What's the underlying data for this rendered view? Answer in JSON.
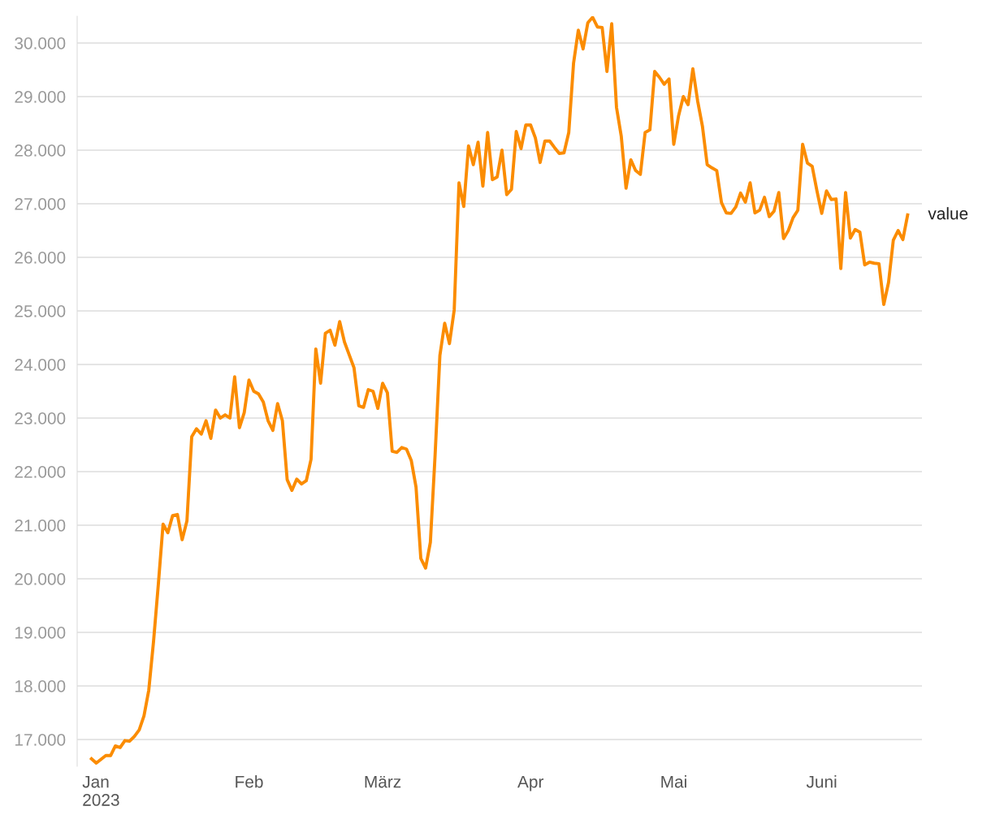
{
  "chart_data": {
    "type": "line",
    "x": [
      "2022-12-30",
      "2022-12-31",
      "2023-01-02",
      "2023-01-03",
      "2023-01-04",
      "2023-01-05",
      "2023-01-06",
      "2023-01-07",
      "2023-01-08",
      "2023-01-09",
      "2023-01-10",
      "2023-01-11",
      "2023-01-12",
      "2023-01-13",
      "2023-01-14",
      "2023-01-15",
      "2023-01-16",
      "2023-01-17",
      "2023-01-18",
      "2023-01-19",
      "2023-01-20",
      "2023-01-21",
      "2023-01-22",
      "2023-01-23",
      "2023-01-24",
      "2023-01-25",
      "2023-01-26",
      "2023-01-27",
      "2023-01-28",
      "2023-01-29",
      "2023-01-30",
      "2023-01-31",
      "2023-02-01",
      "2023-02-02",
      "2023-02-03",
      "2023-02-04",
      "2023-02-05",
      "2023-02-06",
      "2023-02-07",
      "2023-02-08",
      "2023-02-09",
      "2023-02-10",
      "2023-02-11",
      "2023-02-12",
      "2023-02-13",
      "2023-02-14",
      "2023-02-15",
      "2023-02-16",
      "2023-02-17",
      "2023-02-18",
      "2023-02-19",
      "2023-02-20",
      "2023-02-21",
      "2023-02-22",
      "2023-02-23",
      "2023-02-24",
      "2023-02-25",
      "2023-02-26",
      "2023-02-27",
      "2023-02-28",
      "2023-03-01",
      "2023-03-02",
      "2023-03-03",
      "2023-03-04",
      "2023-03-05",
      "2023-03-06",
      "2023-03-07",
      "2023-03-08",
      "2023-03-09",
      "2023-03-10",
      "2023-03-11",
      "2023-03-12",
      "2023-03-13",
      "2023-03-14",
      "2023-03-15",
      "2023-03-16",
      "2023-03-17",
      "2023-03-18",
      "2023-03-19",
      "2023-03-20",
      "2023-03-21",
      "2023-03-22",
      "2023-03-23",
      "2023-03-24",
      "2023-03-25",
      "2023-03-26",
      "2023-03-27",
      "2023-03-28",
      "2023-03-29",
      "2023-03-30",
      "2023-03-31",
      "2023-04-01",
      "2023-04-02",
      "2023-04-03",
      "2023-04-04",
      "2023-04-05",
      "2023-04-06",
      "2023-04-07",
      "2023-04-08",
      "2023-04-09",
      "2023-04-10",
      "2023-04-11",
      "2023-04-12",
      "2023-04-13",
      "2023-04-14",
      "2023-04-15",
      "2023-04-16",
      "2023-04-17",
      "2023-04-18",
      "2023-04-19",
      "2023-04-20",
      "2023-04-21",
      "2023-04-22",
      "2023-04-23",
      "2023-04-24",
      "2023-04-25",
      "2023-04-26",
      "2023-04-27",
      "2023-04-28",
      "2023-04-29",
      "2023-04-30",
      "2023-05-01",
      "2023-05-02",
      "2023-05-03",
      "2023-05-04",
      "2023-05-05",
      "2023-05-06",
      "2023-05-07",
      "2023-05-08",
      "2023-05-09",
      "2023-05-10",
      "2023-05-11",
      "2023-05-12",
      "2023-05-13",
      "2023-05-14",
      "2023-05-15",
      "2023-05-16",
      "2023-05-17",
      "2023-05-18",
      "2023-05-19",
      "2023-05-20",
      "2023-05-21",
      "2023-05-22",
      "2023-05-23",
      "2023-05-24",
      "2023-05-25",
      "2023-05-26",
      "2023-05-27",
      "2023-05-28",
      "2023-05-29",
      "2023-05-30",
      "2023-05-31",
      "2023-06-01",
      "2023-06-02",
      "2023-06-03",
      "2023-06-04",
      "2023-06-05",
      "2023-06-06",
      "2023-06-07",
      "2023-06-08",
      "2023-06-09",
      "2023-06-10",
      "2023-06-11",
      "2023-06-12",
      "2023-06-13",
      "2023-06-14",
      "2023-06-15",
      "2023-06-16",
      "2023-06-17",
      "2023-06-18",
      "2023-06-19"
    ],
    "series": [
      {
        "name": "value",
        "color": "#fb8c00",
        "values": [
          16640,
          16560,
          16700,
          16700,
          16880,
          16850,
          16980,
          16970,
          17060,
          17180,
          17440,
          17920,
          18830,
          19890,
          21020,
          20860,
          21180,
          21200,
          20730,
          21080,
          22650,
          22800,
          22700,
          22950,
          22620,
          23150,
          23000,
          23060,
          23000,
          23770,
          22820,
          23100,
          23710,
          23500,
          23450,
          23300,
          22950,
          22770,
          23270,
          22950,
          21850,
          21650,
          21860,
          21770,
          21830,
          22230,
          24290,
          23650,
          24580,
          24640,
          24360,
          24800,
          24420,
          24180,
          23940,
          23230,
          23200,
          23530,
          23500,
          23180,
          23650,
          23470,
          22380,
          22360,
          22450,
          22420,
          22210,
          21710,
          20380,
          20200,
          20680,
          22320,
          24170,
          24770,
          24390,
          25020,
          27390,
          26950,
          28080,
          27730,
          28150,
          27330,
          28330,
          27450,
          27500,
          28000,
          27170,
          27270,
          28350,
          28030,
          28470,
          28470,
          28230,
          27770,
          28170,
          28170,
          28050,
          27940,
          27950,
          28330,
          29620,
          30240,
          29890,
          30380,
          30480,
          30300,
          30290,
          29470,
          30360,
          28800,
          28260,
          27290,
          27820,
          27620,
          27550,
          28330,
          28380,
          29470,
          29360,
          29230,
          29330,
          28110,
          28640,
          29000,
          28850,
          29520,
          28920,
          28450,
          27730,
          27670,
          27620,
          27020,
          26830,
          26820,
          26940,
          27200,
          27030,
          27390,
          26830,
          26880,
          27120,
          26760,
          26860,
          27210,
          26350,
          26500,
          26740,
          26880,
          28110,
          27760,
          27700,
          27240,
          26820,
          27240,
          27080,
          27090,
          25790,
          27210,
          26360,
          26520,
          26470,
          25860,
          25910,
          25890,
          25880,
          25120,
          25530,
          26320,
          26500,
          26330,
          26790
        ]
      }
    ],
    "xlim": [
      "2022-12-27",
      "2023-06-22"
    ],
    "xticks": [
      {
        "value": "2023-01-01",
        "label": "Jan\n2023"
      },
      {
        "value": "2023-02-01",
        "label": "Feb"
      },
      {
        "value": "2023-03-01",
        "label": "März"
      },
      {
        "value": "2023-04-01",
        "label": "Apr"
      },
      {
        "value": "2023-05-01",
        "label": "Mai"
      },
      {
        "value": "2023-06-01",
        "label": "Juni"
      }
    ],
    "ylim": [
      16500,
      30500
    ],
    "yticks": [
      {
        "value": 17000,
        "label": "17.000"
      },
      {
        "value": 18000,
        "label": "18.000"
      },
      {
        "value": 19000,
        "label": "19.000"
      },
      {
        "value": 20000,
        "label": "20.000"
      },
      {
        "value": 21000,
        "label": "21.000"
      },
      {
        "value": 22000,
        "label": "22.000"
      },
      {
        "value": 23000,
        "label": "23.000"
      },
      {
        "value": 24000,
        "label": "24.000"
      },
      {
        "value": 25000,
        "label": "25.000"
      },
      {
        "value": 26000,
        "label": "26.000"
      },
      {
        "value": 27000,
        "label": "27.000"
      },
      {
        "value": 28000,
        "label": "28.000"
      },
      {
        "value": 29000,
        "label": "29.000"
      },
      {
        "value": 30000,
        "label": "30.000"
      }
    ],
    "grid": "y",
    "legend": false,
    "marker": "none",
    "line_style": "solid"
  }
}
